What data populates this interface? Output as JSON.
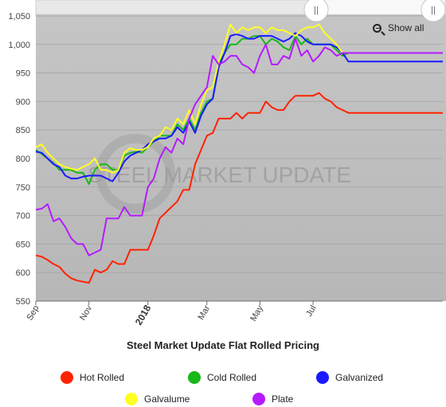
{
  "watermark": "STEEL MARKET UPDATE",
  "zoom": {
    "show_all_label": "Show all",
    "handle_glyph": "||"
  },
  "legend": [
    {
      "name": "Hot Rolled",
      "color": "#ff2200"
    },
    {
      "name": "Cold Rolled",
      "color": "#18b818"
    },
    {
      "name": "Galvanized",
      "color": "#1a1aff"
    },
    {
      "name": "Galvalume",
      "color": "#ffff22"
    },
    {
      "name": "Plate",
      "color": "#b41bff"
    }
  ],
  "chart_data": {
    "type": "line",
    "title": "Steel Market Update Flat Rolled Pricing",
    "xlabel": "",
    "ylabel": "",
    "ylim": [
      550,
      1050
    ],
    "y_ticks": [
      "550",
      "600",
      "650",
      "700",
      "750",
      "800",
      "850",
      "900",
      "950",
      "1,000",
      "1,050"
    ],
    "x_ticks": [
      "Sep",
      "Nov",
      "2018",
      "Mar",
      "May",
      "Jul"
    ],
    "grid": "horizontal",
    "legend_position": "bottom",
    "x": [
      1,
      2,
      3,
      4,
      5,
      6,
      7,
      8,
      9,
      10,
      11,
      12,
      13,
      14,
      15,
      16,
      17,
      18,
      19,
      20,
      21,
      22,
      23,
      24,
      25,
      26,
      27,
      28,
      29,
      30,
      31,
      32,
      33,
      34,
      35,
      36,
      37,
      38,
      39,
      40,
      41,
      42,
      43,
      44,
      45,
      46,
      47,
      48,
      49,
      50,
      51,
      52,
      53,
      54,
      55,
      56,
      57,
      58,
      59,
      60,
      61,
      62,
      63,
      64,
      65,
      66,
      67,
      68,
      69,
      70
    ],
    "series": [
      {
        "name": "Hot Rolled",
        "color": "#ff2200",
        "values": [
          630,
          628,
          622,
          615,
          610,
          598,
          590,
          586,
          584,
          582,
          605,
          600,
          605,
          620,
          615,
          615,
          640,
          640,
          640,
          640,
          665,
          695,
          705,
          715,
          725,
          745,
          745,
          790,
          815,
          840,
          845,
          870,
          870,
          870,
          880,
          870,
          880,
          880,
          880,
          900,
          890,
          885,
          885,
          900,
          910,
          910,
          910,
          910,
          915,
          905,
          900,
          890,
          885,
          880,
          880,
          880,
          880,
          880,
          880,
          880,
          880,
          880,
          880,
          880,
          880,
          880,
          880,
          880,
          880,
          880
        ]
      },
      {
        "name": "Cold Rolled",
        "color": "#18b818",
        "values": [
          815,
          808,
          800,
          792,
          780,
          780,
          780,
          775,
          775,
          755,
          780,
          790,
          790,
          780,
          780,
          805,
          810,
          812,
          810,
          820,
          830,
          840,
          840,
          840,
          860,
          850,
          870,
          850,
          880,
          900,
          905,
          965,
          985,
          1000,
          1000,
          1010,
          1010,
          1015,
          1015,
          1000,
          1010,
          1005,
          995,
          990,
          1015,
          1000,
          1010,
          1000,
          1000,
          1000,
          1000,
          990,
          980,
          985,
          985,
          985,
          985,
          985,
          985,
          985,
          985,
          985,
          985,
          985,
          985,
          985,
          985,
          985,
          985,
          985
        ]
      },
      {
        "name": "Galvanized",
        "color": "#1a1aff",
        "values": [
          812,
          810,
          800,
          790,
          785,
          770,
          765,
          765,
          768,
          770,
          770,
          770,
          765,
          760,
          775,
          795,
          805,
          810,
          815,
          825,
          830,
          835,
          835,
          840,
          855,
          845,
          865,
          845,
          875,
          895,
          905,
          960,
          985,
          1015,
          1018,
          1015,
          1010,
          1010,
          1015,
          1015,
          1015,
          1010,
          1005,
          1010,
          1020,
          1015,
          1005,
          1000,
          1000,
          1000,
          1000,
          995,
          985,
          970,
          970,
          970,
          970,
          970,
          970,
          970,
          970,
          970,
          970,
          970,
          970,
          970,
          970,
          970,
          970,
          970
        ]
      },
      {
        "name": "Galvalume",
        "color": "#ffff22",
        "values": [
          820,
          825,
          810,
          800,
          790,
          785,
          782,
          780,
          785,
          790,
          800,
          780,
          780,
          775,
          780,
          810,
          818,
          815,
          815,
          820,
          835,
          840,
          855,
          850,
          870,
          860,
          885,
          860,
          895,
          920,
          925,
          970,
          1000,
          1035,
          1020,
          1030,
          1025,
          1030,
          1030,
          1020,
          1030,
          1025,
          1025,
          1020,
          1015,
          1025,
          1030,
          1030,
          1035,
          1020,
          1010,
          1000,
          985,
          985,
          985,
          985,
          985,
          985,
          985,
          985,
          985,
          985,
          985,
          985,
          985,
          985,
          985,
          985,
          985,
          985
        ]
      },
      {
        "name": "Plate",
        "color": "#b41bff",
        "values": [
          710,
          712,
          720,
          690,
          695,
          680,
          660,
          650,
          650,
          630,
          635,
          640,
          695,
          695,
          695,
          715,
          700,
          700,
          700,
          750,
          765,
          800,
          820,
          810,
          835,
          825,
          870,
          895,
          910,
          925,
          980,
          965,
          970,
          980,
          980,
          965,
          960,
          950,
          980,
          1000,
          965,
          965,
          980,
          975,
          1010,
          980,
          990,
          970,
          980,
          995,
          990,
          980,
          985,
          985,
          985,
          985,
          985,
          985,
          985,
          985,
          985,
          985,
          985,
          985,
          985,
          985,
          985,
          985,
          985,
          985
        ]
      }
    ]
  }
}
